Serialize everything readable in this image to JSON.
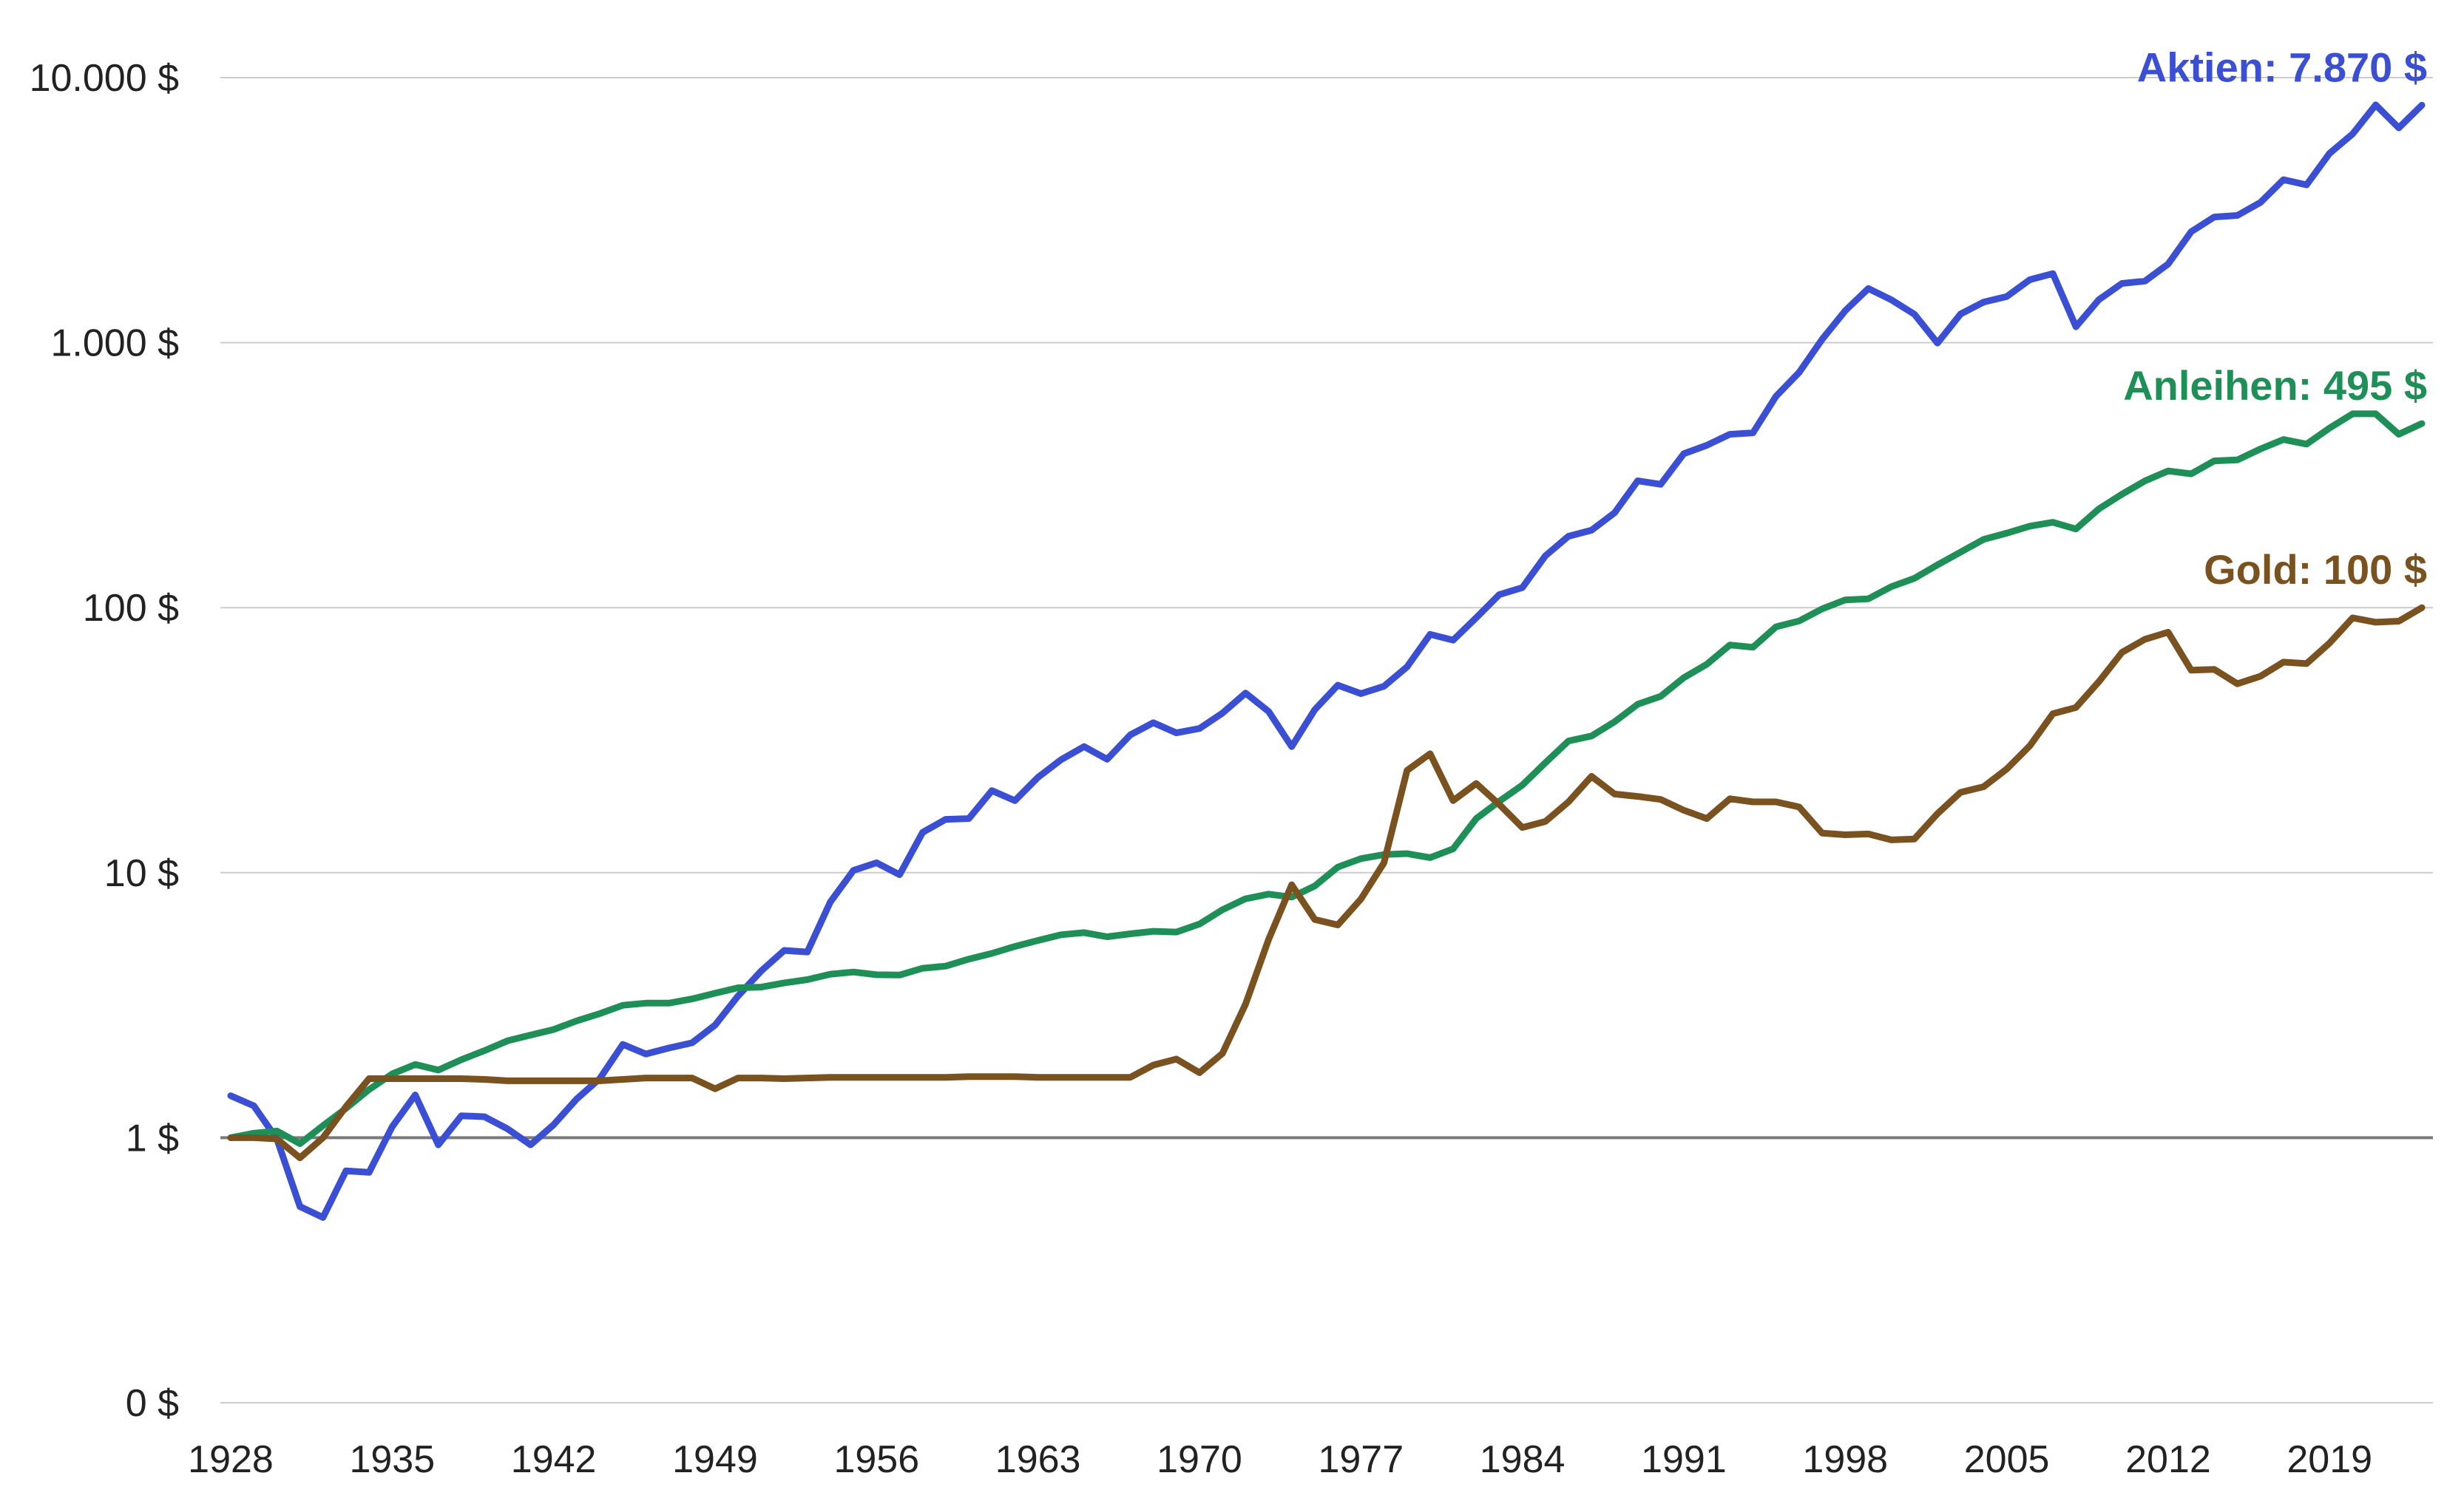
{
  "chart_data": {
    "type": "line",
    "y_scale": "log",
    "grid": true,
    "legend": "none",
    "xlim": [
      1928,
      2023
    ],
    "y_ticks": [
      {
        "value": 0.1,
        "label": "0 $"
      },
      {
        "value": 1,
        "label": "1 $"
      },
      {
        "value": 10,
        "label": "10 $"
      },
      {
        "value": 100,
        "label": "100 $"
      },
      {
        "value": 1000,
        "label": "1.000 $"
      },
      {
        "value": 10000,
        "label": "10.000 $"
      }
    ],
    "x_ticks": [
      {
        "value": 1928,
        "label": "1928"
      },
      {
        "value": 1935,
        "label": "1935"
      },
      {
        "value": 1942,
        "label": "1942"
      },
      {
        "value": 1949,
        "label": "1949"
      },
      {
        "value": 1956,
        "label": "1956"
      },
      {
        "value": 1963,
        "label": "1963"
      },
      {
        "value": 1970,
        "label": "1970"
      },
      {
        "value": 1977,
        "label": "1977"
      },
      {
        "value": 1984,
        "label": "1984"
      },
      {
        "value": 1991,
        "label": "1991"
      },
      {
        "value": 1998,
        "label": "1998"
      },
      {
        "value": 2005,
        "label": "2005"
      },
      {
        "value": 2012,
        "label": "2012"
      },
      {
        "value": 2019,
        "label": "2019"
      }
    ],
    "x": [
      1928,
      1929,
      1930,
      1931,
      1932,
      1933,
      1934,
      1935,
      1936,
      1937,
      1938,
      1939,
      1940,
      1941,
      1942,
      1943,
      1944,
      1945,
      1946,
      1947,
      1948,
      1949,
      1950,
      1951,
      1952,
      1953,
      1954,
      1955,
      1956,
      1957,
      1958,
      1959,
      1960,
      1961,
      1962,
      1963,
      1964,
      1965,
      1966,
      1967,
      1968,
      1969,
      1970,
      1971,
      1972,
      1973,
      1974,
      1975,
      1976,
      1977,
      1978,
      1979,
      1980,
      1981,
      1982,
      1983,
      1984,
      1985,
      1986,
      1987,
      1988,
      1989,
      1990,
      1991,
      1992,
      1993,
      1994,
      1995,
      1996,
      1997,
      1998,
      1999,
      2000,
      2001,
      2002,
      2003,
      2004,
      2005,
      2006,
      2007,
      2008,
      2009,
      2010,
      2011,
      2012,
      2013,
      2014,
      2015,
      2016,
      2017,
      2018,
      2019,
      2020,
      2021,
      2022,
      2023
    ],
    "series": [
      {
        "name": "Aktien",
        "color": "#3a4fd4",
        "end_label": "Aktien: 7.870 $",
        "values": [
          1.44,
          1.32,
          0.99,
          0.55,
          0.5,
          0.75,
          0.74,
          1.1,
          1.45,
          0.94,
          1.21,
          1.2,
          1.08,
          0.94,
          1.12,
          1.4,
          1.67,
          2.25,
          2.07,
          2.18,
          2.28,
          2.66,
          3.43,
          4.26,
          5.09,
          5.02,
          7.76,
          10.2,
          10.9,
          9.83,
          14.2,
          15.9,
          16.0,
          20.4,
          18.7,
          22.9,
          26.7,
          29.9,
          26.8,
          33.1,
          36.8,
          33.7,
          35.0,
          40.0,
          47.6,
          40.6,
          29.9,
          41.2,
          51.0,
          47.4,
          50.5,
          59.8,
          79.3,
          75.4,
          91.6,
          112,
          119,
          157,
          186,
          196,
          228,
          301,
          292,
          381,
          410,
          451,
          457,
          628,
          772,
          1030,
          1320,
          1600,
          1450,
          1280,
          996,
          1282,
          1422,
          1492,
          1727,
          1822,
          1148,
          1453,
          1672,
          1707,
          1980,
          2621,
          2979,
          3020,
          3381,
          4120,
          3939,
          5179,
          6131,
          7891,
          6461,
          7870
        ]
      },
      {
        "name": "Anleihen",
        "color": "#1f8f58",
        "end_label": "Anleihen: 495 $",
        "values": [
          1.0,
          1.04,
          1.06,
          0.95,
          1.11,
          1.29,
          1.52,
          1.74,
          1.89,
          1.8,
          1.97,
          2.13,
          2.32,
          2.44,
          2.56,
          2.76,
          2.94,
          3.16,
          3.22,
          3.22,
          3.34,
          3.51,
          3.68,
          3.7,
          3.84,
          3.95,
          4.14,
          4.22,
          4.12,
          4.11,
          4.36,
          4.44,
          4.72,
          4.96,
          5.27,
          5.55,
          5.83,
          5.94,
          5.73,
          5.88,
          6.01,
          5.97,
          6.4,
          7.25,
          7.97,
          8.3,
          8.09,
          8.91,
          10.5,
          11.3,
          11.7,
          11.8,
          11.4,
          12.3,
          16.0,
          18.6,
          21.4,
          26.0,
          31.4,
          32.8,
          37.1,
          43.2,
          46.3,
          54.4,
          61.2,
          72.3,
          70.9,
          84.7,
          89.1,
          99.0,
          107,
          108,
          120,
          129,
          145,
          162,
          181,
          191,
          203,
          210,
          198,
          236,
          268,
          301,
          328,
          320,
          358,
          361,
          397,
          431,
          414,
          476,
          539,
          539,
          451,
          495
        ]
      },
      {
        "name": "Gold",
        "color": "#7a5220",
        "end_label": "Gold: 100 $",
        "values": [
          1.0,
          1.0,
          0.99,
          0.84,
          1.0,
          1.31,
          1.67,
          1.67,
          1.67,
          1.67,
          1.67,
          1.66,
          1.64,
          1.64,
          1.64,
          1.64,
          1.64,
          1.66,
          1.68,
          1.68,
          1.68,
          1.53,
          1.68,
          1.68,
          1.67,
          1.68,
          1.69,
          1.69,
          1.69,
          1.69,
          1.69,
          1.69,
          1.7,
          1.7,
          1.7,
          1.69,
          1.69,
          1.69,
          1.69,
          1.69,
          1.88,
          1.98,
          1.76,
          2.08,
          3.19,
          5.6,
          9.0,
          6.66,
          6.35,
          7.95,
          10.9,
          24.3,
          28.1,
          18.7,
          21.7,
          18.1,
          14.8,
          15.6,
          18.5,
          23.1,
          19.8,
          19.4,
          18.9,
          17.2,
          16.0,
          19.0,
          18.5,
          18.5,
          17.7,
          14.1,
          13.9,
          14.0,
          13.3,
          13.4,
          16.7,
          20.1,
          21.1,
          24.6,
          30.1,
          39.8,
          42.0,
          52.6,
          67.8,
          76.0,
          80.8,
          58.1,
          58.5,
          51.6,
          55.1,
          62.3,
          61.5,
          73.5,
          91.5,
          88.1,
          88.9,
          100
        ]
      }
    ]
  }
}
